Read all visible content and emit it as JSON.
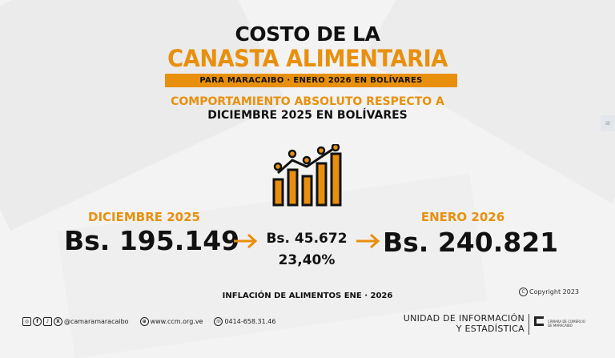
{
  "header": {
    "line1": "COSTO DE LA",
    "line2": "CANASTA ALIMENTARIA",
    "band": "PARA MARACAIBO ·  ENERO 2026 EN BOLÍVARES",
    "subtitle1": "COMPORTAMIENTO ABSOLUTO RESPECTO A",
    "subtitle2": "DICIEMBRE 2025 EN BOLÍVARES"
  },
  "comparison": {
    "left_label": "DICIEMBRE 2025",
    "left_value": "Bs. 195.149",
    "difference": "Bs. 45.672",
    "percent": "23,40%",
    "right_label": "ENERO 2026",
    "right_value": "Bs. 240.821"
  },
  "inflation_note": "INFLACIÓN DE ALIMENTOS ENE · 2026",
  "copyright": "Copyright 2023",
  "footer": {
    "social_handle": "@camaramaracaibo",
    "website": "www.ccm.org.ve",
    "phone": "0414-658.31.46",
    "unit_line1": "UNIDAD DE INFORMACIÓN",
    "unit_line2": "Y ESTADÍSTICA",
    "camara_line1": "CÁMARA DE COMERCIO",
    "camara_line2": "DE MARACAIBO"
  },
  "colors": {
    "accent": "#e8900e",
    "text": "#111111",
    "background": "#f3f3f3"
  },
  "icons": [
    "bar-chart-trend-icon",
    "arrow-right-icon",
    "instagram-icon",
    "facebook-icon",
    "tiktok-icon",
    "x-icon",
    "globe-icon",
    "whatsapp-icon",
    "copyright-icon"
  ]
}
